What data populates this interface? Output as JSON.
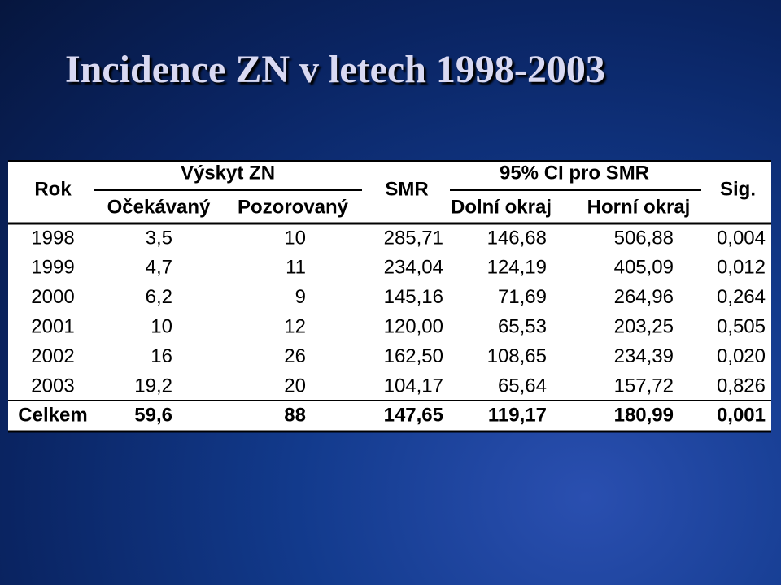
{
  "title": "Incidence ZN v letech 1998-2003",
  "table": {
    "header": {
      "year": "Rok",
      "occurrence": "Výskyt ZN",
      "expected": "Očekávaný",
      "observed": "Pozorovaný",
      "smr": "SMR",
      "ci": "95% CI pro SMR",
      "lower": "Dolní okraj",
      "upper": "Horní okraj",
      "sig": "Sig."
    },
    "rows": [
      [
        "1998",
        "3,5",
        "10",
        "285,71",
        "146,68",
        "506,88",
        "0,004"
      ],
      [
        "1999",
        "4,7",
        "11",
        "234,04",
        "124,19",
        "405,09",
        "0,012"
      ],
      [
        "2000",
        "6,2",
        "9",
        "145,16",
        "71,69",
        "264,96",
        "0,264"
      ],
      [
        "2001",
        "10",
        "12",
        "120,00",
        "65,53",
        "203,25",
        "0,505"
      ],
      [
        "2002",
        "16",
        "26",
        "162,50",
        "108,65",
        "234,39",
        "0,020"
      ],
      [
        "2003",
        "19,2",
        "20",
        "104,17",
        "65,64",
        "157,72",
        "0,826"
      ]
    ],
    "total": [
      "Celkem",
      "59,6",
      "88",
      "147,65",
      "119,17",
      "180,99",
      "0,001"
    ]
  }
}
